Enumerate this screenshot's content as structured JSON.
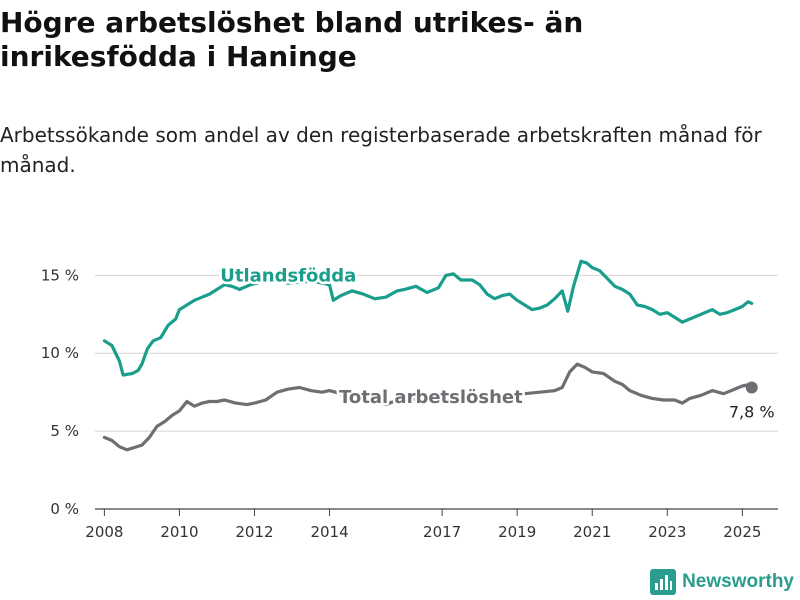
{
  "title": "Högre arbetslöshet bland utrikes- än inrikesfödda i Haninge",
  "subtitle": "Arbetssökande som andel av den registerbaserade arbetskraften månad för månad.",
  "brand": {
    "name": "Newsworthy",
    "icon": "newsworthy-logo-icon",
    "color": "#2a9d8f"
  },
  "chart_data": {
    "type": "line",
    "title": "",
    "xlabel": "",
    "ylabel": "",
    "xlim": [
      2007.75,
      2025.95
    ],
    "ylim": [
      0,
      16.5
    ],
    "grid": true,
    "legend": "inline",
    "y_ticks": [
      {
        "value": 0,
        "label": "0 %"
      },
      {
        "value": 5,
        "label": "5 %"
      },
      {
        "value": 10,
        "label": "10 %"
      },
      {
        "value": 15,
        "label": "15 %"
      }
    ],
    "x_ticks": [
      {
        "value": 2008,
        "label": "2008"
      },
      {
        "value": 2010,
        "label": "2010"
      },
      {
        "value": 2012,
        "label": "2012"
      },
      {
        "value": 2014,
        "label": "2014"
      },
      {
        "value": 2017,
        "label": "2017"
      },
      {
        "value": 2019,
        "label": "2019"
      },
      {
        "value": 2021,
        "label": "2021"
      },
      {
        "value": 2023,
        "label": "2023"
      },
      {
        "value": 2025,
        "label": "2025"
      }
    ],
    "series": [
      {
        "name": "Utlandsfödda",
        "color": "#1a9e8c",
        "label_at": [
          2012.9,
          15.0
        ],
        "points": [
          [
            2008.0,
            10.8
          ],
          [
            2008.2,
            10.5
          ],
          [
            2008.4,
            9.5
          ],
          [
            2008.5,
            8.6
          ],
          [
            2008.75,
            8.7
          ],
          [
            2008.9,
            8.9
          ],
          [
            2009.0,
            9.3
          ],
          [
            2009.15,
            10.3
          ],
          [
            2009.3,
            10.8
          ],
          [
            2009.5,
            11.0
          ],
          [
            2009.7,
            11.8
          ],
          [
            2009.9,
            12.2
          ],
          [
            2010.0,
            12.8
          ],
          [
            2010.2,
            13.1
          ],
          [
            2010.4,
            13.4
          ],
          [
            2010.6,
            13.6
          ],
          [
            2010.8,
            13.8
          ],
          [
            2011.0,
            14.1
          ],
          [
            2011.2,
            14.4
          ],
          [
            2011.4,
            14.3
          ],
          [
            2011.6,
            14.1
          ],
          [
            2011.9,
            14.4
          ],
          [
            2012.2,
            14.6
          ],
          [
            2012.5,
            14.7
          ],
          [
            2012.9,
            14.5
          ],
          [
            2013.3,
            14.6
          ],
          [
            2013.6,
            14.6
          ],
          [
            2014.0,
            14.4
          ],
          [
            2014.1,
            13.4
          ],
          [
            2014.3,
            13.7
          ],
          [
            2014.6,
            14.0
          ],
          [
            2014.9,
            13.8
          ],
          [
            2015.2,
            13.5
          ],
          [
            2015.5,
            13.6
          ],
          [
            2015.8,
            14.0
          ],
          [
            2016.0,
            14.1
          ],
          [
            2016.3,
            14.3
          ],
          [
            2016.6,
            13.9
          ],
          [
            2016.9,
            14.2
          ],
          [
            2017.1,
            15.0
          ],
          [
            2017.3,
            15.1
          ],
          [
            2017.5,
            14.7
          ],
          [
            2017.8,
            14.7
          ],
          [
            2018.0,
            14.4
          ],
          [
            2018.2,
            13.8
          ],
          [
            2018.4,
            13.5
          ],
          [
            2018.6,
            13.7
          ],
          [
            2018.8,
            13.8
          ],
          [
            2019.0,
            13.4
          ],
          [
            2019.2,
            13.1
          ],
          [
            2019.4,
            12.8
          ],
          [
            2019.6,
            12.9
          ],
          [
            2019.8,
            13.1
          ],
          [
            2020.0,
            13.5
          ],
          [
            2020.2,
            14.0
          ],
          [
            2020.35,
            12.7
          ],
          [
            2020.5,
            14.3
          ],
          [
            2020.7,
            15.9
          ],
          [
            2020.85,
            15.8
          ],
          [
            2021.0,
            15.5
          ],
          [
            2021.2,
            15.3
          ],
          [
            2021.4,
            14.8
          ],
          [
            2021.6,
            14.3
          ],
          [
            2021.8,
            14.1
          ],
          [
            2022.0,
            13.8
          ],
          [
            2022.2,
            13.1
          ],
          [
            2022.4,
            13.0
          ],
          [
            2022.6,
            12.8
          ],
          [
            2022.8,
            12.5
          ],
          [
            2023.0,
            12.6
          ],
          [
            2023.2,
            12.3
          ],
          [
            2023.4,
            12.0
          ],
          [
            2023.6,
            12.2
          ],
          [
            2023.8,
            12.4
          ],
          [
            2024.0,
            12.6
          ],
          [
            2024.2,
            12.8
          ],
          [
            2024.4,
            12.5
          ],
          [
            2024.6,
            12.6
          ],
          [
            2024.8,
            12.8
          ],
          [
            2025.0,
            13.0
          ],
          [
            2025.15,
            13.3
          ],
          [
            2025.25,
            13.2
          ]
        ]
      },
      {
        "name": "Total arbetslöshet",
        "color": "#6e6e73",
        "label_at": [
          2016.7,
          7.2
        ],
        "end_label": "7,8 %",
        "points": [
          [
            2008.0,
            4.6
          ],
          [
            2008.2,
            4.4
          ],
          [
            2008.4,
            4.0
          ],
          [
            2008.6,
            3.8
          ],
          [
            2008.8,
            3.95
          ],
          [
            2009.0,
            4.1
          ],
          [
            2009.2,
            4.6
          ],
          [
            2009.4,
            5.3
          ],
          [
            2009.6,
            5.6
          ],
          [
            2009.8,
            6.0
          ],
          [
            2010.0,
            6.3
          ],
          [
            2010.2,
            6.9
          ],
          [
            2010.4,
            6.6
          ],
          [
            2010.6,
            6.8
          ],
          [
            2010.8,
            6.9
          ],
          [
            2011.0,
            6.9
          ],
          [
            2011.2,
            7.0
          ],
          [
            2011.5,
            6.8
          ],
          [
            2011.8,
            6.7
          ],
          [
            2012.0,
            6.8
          ],
          [
            2012.3,
            7.0
          ],
          [
            2012.6,
            7.5
          ],
          [
            2012.9,
            7.7
          ],
          [
            2013.2,
            7.8
          ],
          [
            2013.5,
            7.6
          ],
          [
            2013.8,
            7.5
          ],
          [
            2014.0,
            7.6
          ],
          [
            2014.3,
            7.4
          ],
          [
            2014.6,
            7.1
          ],
          [
            2014.9,
            7.0
          ],
          [
            2015.2,
            6.9
          ],
          [
            2015.5,
            6.7
          ],
          [
            2015.8,
            7.0
          ],
          [
            2016.1,
            7.1
          ],
          [
            2016.4,
            7.0
          ],
          [
            2016.7,
            6.9
          ],
          [
            2016.9,
            7.0
          ],
          [
            2017.2,
            7.2
          ],
          [
            2017.6,
            7.3
          ],
          [
            2018.0,
            7.4
          ],
          [
            2018.4,
            7.4
          ],
          [
            2018.8,
            7.3
          ],
          [
            2019.2,
            7.4
          ],
          [
            2019.6,
            7.5
          ],
          [
            2020.0,
            7.6
          ],
          [
            2020.2,
            7.8
          ],
          [
            2020.4,
            8.8
          ],
          [
            2020.6,
            9.3
          ],
          [
            2020.8,
            9.1
          ],
          [
            2021.0,
            8.8
          ],
          [
            2021.3,
            8.7
          ],
          [
            2021.6,
            8.2
          ],
          [
            2021.8,
            8.0
          ],
          [
            2022.0,
            7.6
          ],
          [
            2022.3,
            7.3
          ],
          [
            2022.6,
            7.1
          ],
          [
            2022.9,
            7.0
          ],
          [
            2023.2,
            7.0
          ],
          [
            2023.4,
            6.8
          ],
          [
            2023.6,
            7.1
          ],
          [
            2023.9,
            7.3
          ],
          [
            2024.2,
            7.6
          ],
          [
            2024.5,
            7.4
          ],
          [
            2024.8,
            7.7
          ],
          [
            2025.0,
            7.9
          ],
          [
            2025.2,
            8.0
          ],
          [
            2025.25,
            7.8
          ]
        ]
      }
    ]
  }
}
